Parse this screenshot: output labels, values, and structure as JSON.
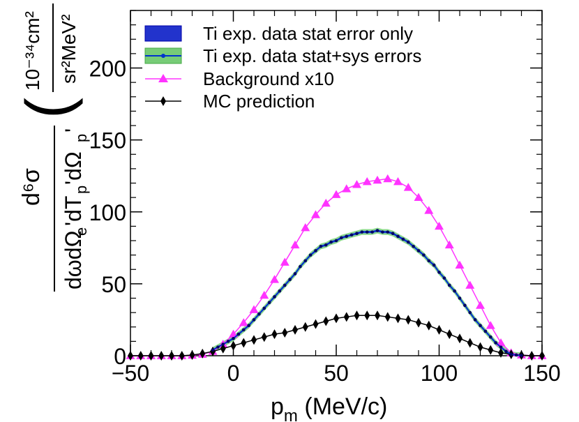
{
  "chart_data": {
    "type": "line",
    "xlabel_main": "p",
    "xlabel_sub": "m",
    "xlabel_units": " (MeV/c)",
    "ylabel": "d⁶σ / dωdΩe'dTp'dΩp' (10⁻³⁴cm² / sr²MeV²)",
    "xlim": [
      -50,
      150
    ],
    "ylim": [
      0,
      240
    ],
    "xticks": [
      -50,
      0,
      50,
      100,
      150
    ],
    "yticks": [
      0,
      50,
      100,
      150,
      200
    ],
    "x_tick_labels": [
      "−50",
      "0",
      "50",
      "100",
      "150"
    ],
    "y_tick_labels": [
      "0",
      "50",
      "100",
      "150",
      "200"
    ],
    "legend": [
      {
        "label": "Ti exp. data stat error only",
        "style": "box-dark"
      },
      {
        "label": "Ti exp. data stat+sys errors",
        "style": "box-light"
      },
      {
        "label": "Background x10",
        "style": "triangle"
      },
      {
        "label": "MC prediction",
        "style": "diamond"
      }
    ],
    "series": [
      {
        "name": "Ti exp. data",
        "color": "#0033cc",
        "stat_band_color": "#3344dd",
        "sys_band_color": "#66cc66",
        "sys_error": 2.0,
        "x": [
          -10,
          -7.5,
          -5,
          -2.5,
          0,
          2.5,
          5,
          7.5,
          10,
          12.5,
          15,
          17.5,
          20,
          22.5,
          25,
          27.5,
          30,
          32.5,
          35,
          37.5,
          40,
          42.5,
          45,
          47.5,
          50,
          52.5,
          55,
          57.5,
          60,
          62.5,
          65,
          67.5,
          70,
          72.5,
          75,
          77.5,
          80,
          82.5,
          85,
          87.5,
          90,
          92.5,
          95,
          97.5,
          100,
          102.5,
          105,
          107.5,
          110,
          112.5,
          115,
          117.5,
          120,
          122.5,
          125,
          127.5,
          130,
          132.5,
          135,
          137.5,
          140
        ],
        "y": [
          4,
          6,
          8,
          10,
          12,
          15,
          18,
          21,
          25,
          29,
          33,
          37,
          41,
          45,
          49,
          53,
          57,
          62,
          66,
          70,
          73,
          76,
          77,
          79,
          80,
          82,
          83,
          84,
          85,
          86,
          86,
          86,
          87,
          86,
          86,
          85,
          83,
          81,
          79,
          76,
          73,
          70,
          66,
          63,
          58,
          54,
          49,
          45,
          40,
          35,
          30,
          25,
          21,
          17,
          13,
          9,
          6,
          3,
          1,
          0.5,
          0.2
        ]
      },
      {
        "name": "Background x10",
        "color": "#ff33ff",
        "marker": "triangle",
        "x": [
          -50,
          -45,
          -40,
          -35,
          -30,
          -25,
          -20,
          -15,
          -10,
          -5,
          0,
          5,
          10,
          15,
          20,
          25,
          30,
          35,
          40,
          45,
          50,
          55,
          60,
          65,
          70,
          75,
          80,
          85,
          90,
          95,
          100,
          105,
          110,
          115,
          120,
          125,
          130,
          135,
          140,
          145,
          150
        ],
        "y": [
          0,
          0,
          0,
          0,
          0,
          0,
          0.3,
          1,
          3,
          8,
          15,
          23,
          32,
          42,
          53,
          65,
          77,
          89,
          98,
          106,
          112,
          116,
          119,
          121,
          122,
          123,
          121,
          117,
          110,
          101,
          90,
          77,
          63,
          49,
          35,
          21,
          9,
          2,
          0.5,
          0,
          0
        ]
      },
      {
        "name": "MC prediction",
        "color": "#000000",
        "marker": "diamond",
        "x": [
          -50,
          -45,
          -40,
          -35,
          -30,
          -25,
          -20,
          -15,
          -10,
          -5,
          0,
          5,
          10,
          15,
          20,
          25,
          30,
          35,
          40,
          45,
          50,
          55,
          60,
          65,
          70,
          75,
          80,
          85,
          90,
          95,
          100,
          105,
          110,
          115,
          120,
          125,
          130,
          135,
          140,
          145,
          150
        ],
        "y": [
          0,
          0,
          0,
          0,
          0,
          0,
          0.5,
          1.5,
          3,
          5,
          7,
          9,
          11,
          13,
          15,
          16,
          18,
          20,
          22,
          24,
          26,
          27,
          28,
          28,
          28,
          27,
          26,
          25,
          23,
          21,
          18,
          15,
          12,
          9,
          6,
          4,
          2,
          1,
          0.4,
          0,
          0
        ]
      }
    ]
  }
}
